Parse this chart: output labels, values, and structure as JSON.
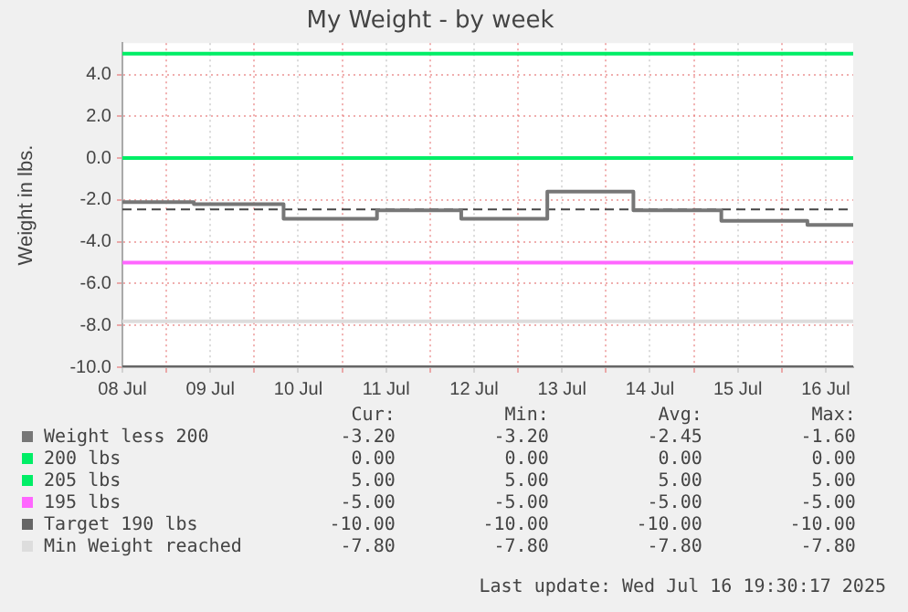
{
  "chart_data": {
    "type": "line",
    "title": "My Weight - by week",
    "ylabel": "Weight in lbs.",
    "xlim": [
      "2025-07-08T12:00",
      "2025-07-16T19:30"
    ],
    "xticks": [
      {
        "value": "2025-07-08T12:00",
        "label": "08 Jul"
      },
      {
        "value": "2025-07-09T00:00",
        "label": null
      },
      {
        "value": "2025-07-09T12:00",
        "label": "09 Jul"
      },
      {
        "value": "2025-07-10T00:00",
        "label": null
      },
      {
        "value": "2025-07-10T12:00",
        "label": "10 Jul"
      },
      {
        "value": "2025-07-11T00:00",
        "label": null
      },
      {
        "value": "2025-07-11T12:00",
        "label": "11 Jul"
      },
      {
        "value": "2025-07-12T00:00",
        "label": null
      },
      {
        "value": "2025-07-12T12:00",
        "label": "12 Jul"
      },
      {
        "value": "2025-07-13T00:00",
        "label": null
      },
      {
        "value": "2025-07-13T12:00",
        "label": "13 Jul"
      },
      {
        "value": "2025-07-14T00:00",
        "label": null
      },
      {
        "value": "2025-07-14T12:00",
        "label": "14 Jul"
      },
      {
        "value": "2025-07-15T00:00",
        "label": null
      },
      {
        "value": "2025-07-15T12:00",
        "label": "15 Jul"
      },
      {
        "value": "2025-07-16T00:00",
        "label": null
      },
      {
        "value": "2025-07-16T12:00",
        "label": "16 Jul"
      }
    ],
    "ylim": [
      -10,
      5.5
    ],
    "yticks": [
      {
        "value": -10,
        "label": "-10.0"
      },
      {
        "value": -8,
        "label": "-8.0"
      },
      {
        "value": -6,
        "label": "-6.0"
      },
      {
        "value": -4,
        "label": "-4.0"
      },
      {
        "value": -2,
        "label": "-2.0"
      },
      {
        "value": 0,
        "label": "0.0"
      },
      {
        "value": 2,
        "label": "2.0"
      },
      {
        "value": 4,
        "label": "4.0"
      }
    ],
    "grid": true,
    "legend": "bottom",
    "series": [
      {
        "name": "Weight less 200",
        "type": "step",
        "color": "#777777",
        "x": [
          "2025-07-08T12:00",
          "2025-07-09T07:30",
          "2025-07-10T08:00",
          "2025-07-11T09:30",
          "2025-07-12T08:30",
          "2025-07-13T08:00",
          "2025-07-14T07:30",
          "2025-07-15T07:30",
          "2025-07-16T07:00",
          "2025-07-16T19:30"
        ],
        "values": [
          -2.1,
          -2.2,
          -2.9,
          -2.5,
          -2.9,
          -1.6,
          -2.5,
          -3.0,
          -3.2,
          -3.2
        ]
      },
      {
        "name": "200 lbs",
        "type": "line",
        "color": "#00ee66",
        "x": [
          "2025-07-08T12:00",
          "2025-07-16T19:30"
        ],
        "values": [
          0,
          0
        ]
      },
      {
        "name": "205 lbs",
        "type": "line",
        "color": "#00ee66",
        "x": [
          "2025-07-08T12:00",
          "2025-07-16T19:30"
        ],
        "values": [
          5,
          5
        ]
      },
      {
        "name": "195 lbs",
        "type": "line",
        "color": "#ff66ff",
        "x": [
          "2025-07-08T12:00",
          "2025-07-16T19:30"
        ],
        "values": [
          -5,
          -5
        ]
      },
      {
        "name": "Target 190 lbs",
        "type": "line",
        "color": "#666666",
        "x": [
          "2025-07-08T12:00",
          "2025-07-16T19:30"
        ],
        "values": [
          -10,
          -10
        ]
      },
      {
        "name": "Min Weight reached",
        "type": "line",
        "color": "#dddddd",
        "x": [
          "2025-07-08T12:00",
          "2025-07-16T19:30"
        ],
        "values": [
          -7.8,
          -7.8
        ]
      }
    ],
    "ref_lines": [
      {
        "axis": "y",
        "value": -2.45,
        "color": "#444444",
        "line_style": "dashed"
      }
    ],
    "annotations": [
      "Cur:",
      "Min:",
      "Avg:",
      "Max:",
      "-3.20",
      "-3.20",
      "-2.45",
      "-1.60",
      "0.00",
      "0.00",
      "0.00",
      "0.00",
      "5.00",
      "5.00",
      "5.00",
      "5.00",
      "-5.00",
      "-5.00",
      "-5.00",
      "-5.00",
      "-10.00",
      "-10.00",
      "-10.00",
      "-10.00",
      "-7.80",
      "-7.80",
      "-7.80",
      "-7.80",
      "Last update: Wed Jul 16 19:30:17 2025"
    ]
  }
}
